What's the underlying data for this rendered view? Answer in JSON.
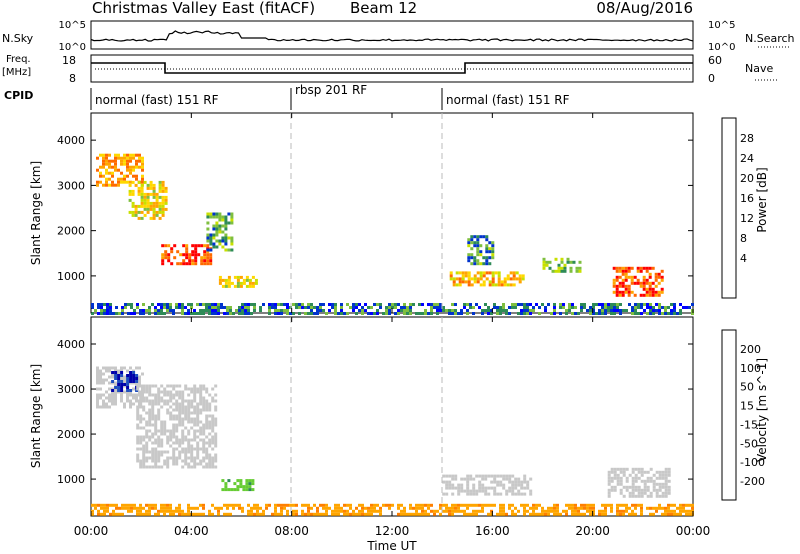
{
  "header": {
    "title": "Christmas Valley East (fitACF)",
    "beam": "Beam 12",
    "date": "08/Aug/2016"
  },
  "top_panels": {
    "nsky_label": "N.Sky",
    "nsearch_label": "N.Search",
    "nsky_ticks": [
      "10^5",
      "10^0"
    ],
    "freq_label_1": "Freq.",
    "freq_label_2": "[MHz]",
    "freq_ticks": [
      "18",
      "8"
    ],
    "nave_label": "Nave",
    "nave_ticks": [
      "60",
      "0"
    ],
    "cpid_label": "CPID",
    "cpid_segments": [
      {
        "label": "normal (fast) 151 RF",
        "start_h": 0,
        "end_h": 8
      },
      {
        "label": "rbsp 201 RF",
        "start_h": 8,
        "end_h": 14
      },
      {
        "label": "normal (fast) 151 RF",
        "start_h": 14,
        "end_h": 24
      }
    ]
  },
  "chart_data": [
    {
      "type": "heatmap",
      "title": "",
      "xlabel": "",
      "ylabel": "Slant Range [km]",
      "xlim_hours": [
        0,
        24
      ],
      "ylim_km": [
        180,
        4600
      ],
      "y_ticks": [
        "4000",
        "3000",
        "2000",
        "1000"
      ],
      "colorbar_label": "Power [dB]",
      "colorbar_ticks": [
        "28",
        "24",
        "20",
        "16",
        "12",
        "8",
        "4"
      ],
      "colorbar_colors": [
        "#ff0000",
        "#ff6a00",
        "#ffa500",
        "#ffd800",
        "#c8e000",
        "#7fbf3f",
        "#2e8b57",
        "#0033cc",
        "#0000ff"
      ],
      "regions": [
        {
          "h0": 0.2,
          "h1": 2.0,
          "km0": 3000,
          "km1": 3700,
          "level": 22
        },
        {
          "h0": 1.5,
          "h1": 3.0,
          "km0": 2300,
          "km1": 3100,
          "level": 18
        },
        {
          "h0": 2.8,
          "h1": 4.8,
          "km0": 1250,
          "km1": 1700,
          "level": 26
        },
        {
          "h0": 4.6,
          "h1": 5.6,
          "km0": 1600,
          "km1": 2400,
          "level": 12
        },
        {
          "h0": 5.1,
          "h1": 6.6,
          "km0": 780,
          "km1": 1000,
          "level": 18
        },
        {
          "h0": 14.3,
          "h1": 17.2,
          "km0": 780,
          "km1": 1100,
          "level": 20
        },
        {
          "h0": 15.0,
          "h1": 16.0,
          "km0": 1300,
          "km1": 1900,
          "level": 10
        },
        {
          "h0": 18.0,
          "h1": 19.5,
          "km0": 1100,
          "km1": 1400,
          "level": 12
        },
        {
          "h0": 20.8,
          "h1": 22.8,
          "km0": 600,
          "km1": 1200,
          "level": 26
        },
        {
          "h0": 0.0,
          "h1": 24.0,
          "km0": 200,
          "km1": 400,
          "level": 8
        }
      ]
    },
    {
      "type": "heatmap",
      "title": "",
      "xlabel": "Time UT",
      "ylabel": "Slant Range [km]",
      "xlim_hours": [
        0,
        24
      ],
      "ylim_km": [
        180,
        4600
      ],
      "x_ticks": [
        "00:00",
        "04:00",
        "08:00",
        "12:00",
        "16:00",
        "20:00",
        "00:00"
      ],
      "y_ticks": [
        "4000",
        "3000",
        "2000",
        "1000"
      ],
      "colorbar_label": "Velocity [m s^-1]",
      "colorbar_ticks": [
        "200",
        "100",
        "50",
        "15",
        "-15",
        "-50",
        "-100",
        "-200"
      ],
      "colorbar_colors": [
        "#0000aa",
        "#1f4fbf",
        "#2e8b57",
        "#66cc33",
        "#c8c8c8",
        "#ffa500",
        "#ff7f00",
        "#ff4500",
        "#ff0000"
      ],
      "regions": [
        {
          "h0": 0.2,
          "h1": 2.0,
          "km0": 2600,
          "km1": 3500,
          "level": 0
        },
        {
          "h0": 0.8,
          "h1": 1.8,
          "km0": 3000,
          "km1": 3400,
          "level": 150
        },
        {
          "h0": 1.8,
          "h1": 5.0,
          "km0": 1300,
          "km1": 3100,
          "level": 0
        },
        {
          "h0": 5.2,
          "h1": 6.5,
          "km0": 750,
          "km1": 1000,
          "level": 40
        },
        {
          "h0": 14.0,
          "h1": 17.5,
          "km0": 700,
          "km1": 1100,
          "level": 0
        },
        {
          "h0": 20.6,
          "h1": 23.0,
          "km0": 600,
          "km1": 1250,
          "level": 0
        },
        {
          "h0": 0.0,
          "h1": 24.0,
          "km0": 200,
          "km1": 450,
          "level": -40
        }
      ]
    }
  ]
}
